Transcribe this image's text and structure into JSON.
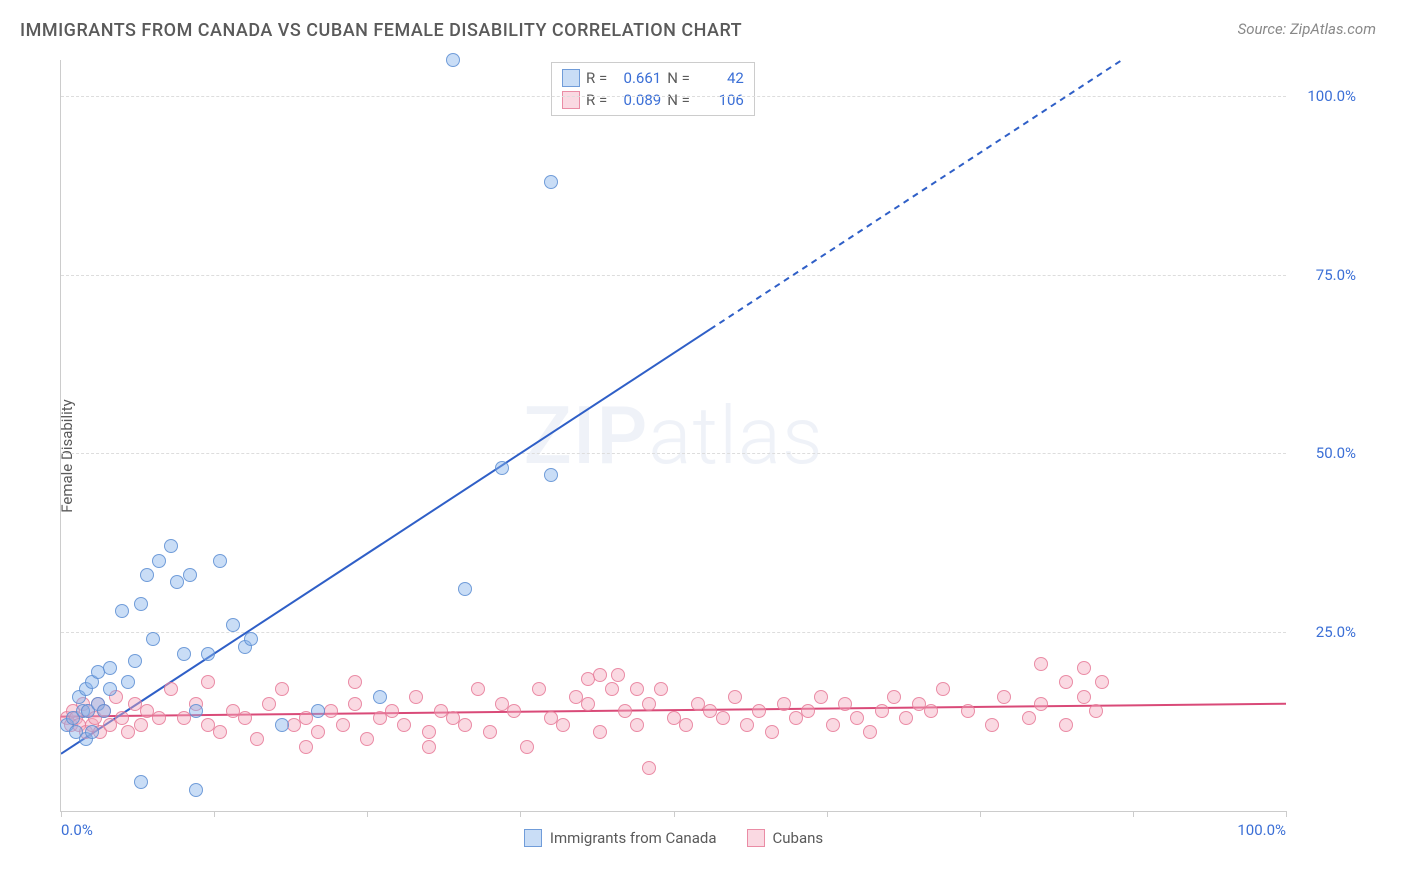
{
  "title": "IMMIGRANTS FROM CANADA VS CUBAN FEMALE DISABILITY CORRELATION CHART",
  "source": "Source: ZipAtlas.com",
  "ylabel": "Female Disability",
  "watermark": {
    "left": "ZIP",
    "right": "atlas"
  },
  "chart": {
    "type": "scatter",
    "xlim": [
      0,
      100
    ],
    "ylim": [
      0,
      105
    ],
    "yticks": [
      25,
      50,
      75,
      100
    ],
    "ytick_labels": [
      "25.0%",
      "50.0%",
      "75.0%",
      "100.0%"
    ],
    "xtick_positions": [
      0,
      12.5,
      25,
      37.5,
      50,
      62.5,
      75,
      87.5,
      100
    ],
    "xtick_labels": {
      "0": "0.0%",
      "100": "100.0%"
    },
    "grid_color": "#dddddd",
    "axis_color": "#cccccc",
    "background_color": "#ffffff",
    "series": {
      "blue": {
        "label": "Immigrants from Canada",
        "fill": "rgba(135,180,235,0.45)",
        "stroke": "rgba(90,140,210,0.8)",
        "trend_color": "#2f5fc7",
        "trend": {
          "intercept": 8,
          "slope": 1.12,
          "solid_until_x": 53
        },
        "R": "0.661",
        "N": "42",
        "points": [
          [
            0.5,
            12
          ],
          [
            1,
            13
          ],
          [
            1.2,
            11
          ],
          [
            1.5,
            16
          ],
          [
            1.8,
            14
          ],
          [
            2,
            10
          ],
          [
            2,
            17
          ],
          [
            2.2,
            14
          ],
          [
            2.5,
            18
          ],
          [
            2.5,
            11
          ],
          [
            3,
            15
          ],
          [
            3,
            19.5
          ],
          [
            3.5,
            14
          ],
          [
            4,
            20
          ],
          [
            4,
            17
          ],
          [
            5,
            28
          ],
          [
            5.5,
            18
          ],
          [
            6,
            21
          ],
          [
            6.5,
            29
          ],
          [
            7,
            33
          ],
          [
            7.5,
            24
          ],
          [
            8,
            35
          ],
          [
            9,
            37
          ],
          [
            9.5,
            32
          ],
          [
            10,
            22
          ],
          [
            10.5,
            33
          ],
          [
            11,
            14
          ],
          [
            12,
            22
          ],
          [
            13,
            35
          ],
          [
            14,
            26
          ],
          [
            15,
            23
          ],
          [
            15.5,
            24
          ],
          [
            6.5,
            4
          ],
          [
            11,
            3
          ],
          [
            18,
            12
          ],
          [
            21,
            14
          ],
          [
            26,
            16
          ],
          [
            32,
            105
          ],
          [
            36,
            48
          ],
          [
            40,
            47
          ],
          [
            40,
            88
          ],
          [
            33,
            31
          ]
        ]
      },
      "pink": {
        "label": "Cubans",
        "fill": "rgba(245,170,190,0.45)",
        "stroke": "rgba(230,120,150,0.8)",
        "trend_color": "#d94a78",
        "trend": {
          "intercept": 13.2,
          "slope": 0.018,
          "solid_until_x": 100
        },
        "R": "0.089",
        "N": "106",
        "points": [
          [
            0.5,
            13
          ],
          [
            0.8,
            12
          ],
          [
            1,
            14
          ],
          [
            1.2,
            13
          ],
          [
            1.5,
            12
          ],
          [
            1.8,
            15
          ],
          [
            2,
            11
          ],
          [
            2.2,
            14
          ],
          [
            2.5,
            12
          ],
          [
            2.8,
            13
          ],
          [
            3,
            15
          ],
          [
            3.2,
            11
          ],
          [
            3.5,
            14
          ],
          [
            4,
            12
          ],
          [
            4.5,
            16
          ],
          [
            5,
            13
          ],
          [
            5.5,
            11
          ],
          [
            6,
            15
          ],
          [
            6.5,
            12
          ],
          [
            7,
            14
          ],
          [
            8,
            13
          ],
          [
            9,
            17
          ],
          [
            10,
            13
          ],
          [
            11,
            15
          ],
          [
            12,
            12
          ],
          [
            12,
            18
          ],
          [
            13,
            11
          ],
          [
            14,
            14
          ],
          [
            15,
            13
          ],
          [
            16,
            10
          ],
          [
            17,
            15
          ],
          [
            18,
            17
          ],
          [
            19,
            12
          ],
          [
            20,
            13
          ],
          [
            20,
            9
          ],
          [
            21,
            11
          ],
          [
            22,
            14
          ],
          [
            23,
            12
          ],
          [
            24,
            15
          ],
          [
            24,
            18
          ],
          [
            25,
            10
          ],
          [
            26,
            13
          ],
          [
            27,
            14
          ],
          [
            28,
            12
          ],
          [
            29,
            16
          ],
          [
            30,
            11
          ],
          [
            30,
            9
          ],
          [
            31,
            14
          ],
          [
            32,
            13
          ],
          [
            33,
            12
          ],
          [
            34,
            17
          ],
          [
            35,
            11
          ],
          [
            36,
            15
          ],
          [
            37,
            14
          ],
          [
            38,
            9
          ],
          [
            39,
            17
          ],
          [
            40,
            13
          ],
          [
            41,
            12
          ],
          [
            42,
            16
          ],
          [
            43,
            15
          ],
          [
            43,
            18.5
          ],
          [
            44,
            11
          ],
          [
            44,
            19
          ],
          [
            45,
            17
          ],
          [
            45.5,
            19
          ],
          [
            46,
            14
          ],
          [
            47,
            12
          ],
          [
            47,
            17
          ],
          [
            48,
            15
          ],
          [
            48,
            6
          ],
          [
            49,
            17
          ],
          [
            50,
            13
          ],
          [
            51,
            12
          ],
          [
            52,
            15
          ],
          [
            53,
            14
          ],
          [
            54,
            13
          ],
          [
            55,
            16
          ],
          [
            56,
            12
          ],
          [
            57,
            14
          ],
          [
            58,
            11
          ],
          [
            59,
            15
          ],
          [
            60,
            13
          ],
          [
            61,
            14
          ],
          [
            62,
            16
          ],
          [
            63,
            12
          ],
          [
            64,
            15
          ],
          [
            65,
            13
          ],
          [
            66,
            11
          ],
          [
            67,
            14
          ],
          [
            68,
            16
          ],
          [
            69,
            13
          ],
          [
            70,
            15
          ],
          [
            71,
            14
          ],
          [
            72,
            17
          ],
          [
            74,
            14
          ],
          [
            76,
            12
          ],
          [
            77,
            16
          ],
          [
            79,
            13
          ],
          [
            80,
            20.5
          ],
          [
            80,
            15
          ],
          [
            82,
            12
          ],
          [
            82,
            18
          ],
          [
            83.5,
            16
          ],
          [
            83.5,
            20
          ],
          [
            84.5,
            14
          ],
          [
            85,
            18
          ]
        ]
      }
    }
  },
  "legend_top": {
    "R_label": "R =",
    "N_label": "N ="
  }
}
